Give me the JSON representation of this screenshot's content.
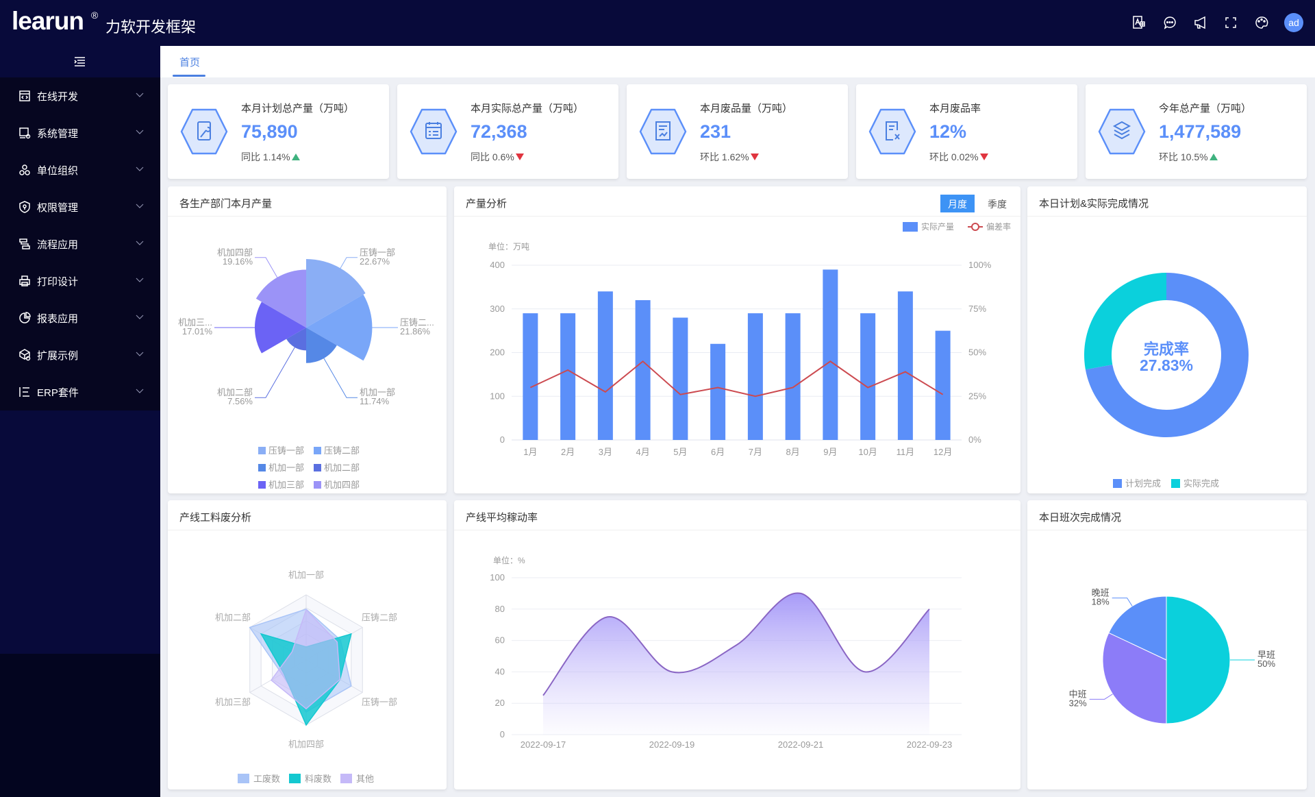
{
  "header": {
    "logo": "learun",
    "logo_mark": "®",
    "title": "力软开发框架",
    "avatar": "ad",
    "icons": [
      "translate-icon",
      "message-icon",
      "notice-icon",
      "fullscreen-icon",
      "theme-icon"
    ]
  },
  "sidebar": {
    "items": [
      {
        "label": "在线开发",
        "icon": "code-icon"
      },
      {
        "label": "系统管理",
        "icon": "monitor-gear-icon"
      },
      {
        "label": "单位组织",
        "icon": "org-icon"
      },
      {
        "label": "权限管理",
        "icon": "shield-icon"
      },
      {
        "label": "流程应用",
        "icon": "flow-icon"
      },
      {
        "label": "打印设计",
        "icon": "printer-icon"
      },
      {
        "label": "报表应用",
        "icon": "pie-icon"
      },
      {
        "label": "扩展示例",
        "icon": "cube-icon"
      },
      {
        "label": "ERP套件",
        "icon": "list-icon"
      }
    ]
  },
  "tabs": [
    {
      "label": "首页"
    }
  ],
  "stats": [
    {
      "title": "本月计划总产量（万吨）",
      "value": "75,890",
      "compare": "同比 1.14%",
      "trend": "up",
      "icon": "wrench-clipboard-icon"
    },
    {
      "title": "本月实际总产量（万吨）",
      "value": "72,368",
      "compare": "同比 0.6%",
      "trend": "down",
      "icon": "checklist-icon"
    },
    {
      "title": "本月废品量（万吨）",
      "value": "231",
      "compare": "环比 1.62%",
      "trend": "down",
      "icon": "document-chart-icon"
    },
    {
      "title": "本月废品率",
      "value": "12%",
      "compare": "环比 0.02%",
      "trend": "down",
      "icon": "document-x-icon"
    },
    {
      "title": "今年总产量（万吨）",
      "value": "1,477,589",
      "compare": "环比 10.5%",
      "trend": "up",
      "icon": "layers-icon"
    }
  ],
  "colors": {
    "up": "#3fb27f",
    "down": "#e0343f",
    "accent": "#5b8ff9"
  },
  "panels": {
    "rose": "各生产部门本月产量",
    "bar": "产量分析",
    "donut": "本日计划&实际完成情况",
    "radar": "产线工料废分析",
    "area": "产线平均稼动率",
    "pie": "本日班次完成情况"
  },
  "chart_data": [
    {
      "type": "pie",
      "variant": "rose",
      "title": "各生产部门本月产量",
      "categories": [
        "压铸一部",
        "压铸二部",
        "机加一部",
        "机加二部",
        "机加三部",
        "机加四部"
      ],
      "slice_labels": [
        "压铸一部",
        "压铸二...",
        "机加一部",
        "机加二部",
        "机加三...",
        "机加四部"
      ],
      "values": [
        22.67,
        21.86,
        11.74,
        7.56,
        17.01,
        19.16
      ],
      "value_labels": [
        "22.67%",
        "21.86%",
        "11.74%",
        "7.56%",
        "17.01%",
        "19.16%"
      ],
      "colors": [
        "#8aaef5",
        "#79a6f8",
        "#5588e6",
        "#5a6fe0",
        "#6b63f5",
        "#9b93f7"
      ],
      "legend": "bottom"
    },
    {
      "type": "bar",
      "title": "产量分析",
      "buttons": [
        "月度",
        "季度"
      ],
      "active_button": "月度",
      "categories": [
        "1月",
        "2月",
        "3月",
        "4月",
        "5月",
        "6月",
        "7月",
        "8月",
        "9月",
        "10月",
        "11月",
        "12月"
      ],
      "series": [
        {
          "name": "实际产量",
          "type": "bar",
          "axis": "left",
          "color": "#5b8ff9",
          "values": [
            290,
            290,
            340,
            320,
            280,
            220,
            290,
            290,
            390,
            290,
            340,
            250
          ]
        },
        {
          "name": "偏差率",
          "type": "line",
          "axis": "right",
          "color": "#cc4a50",
          "values": [
            30,
            40,
            27.5,
            45,
            26,
            30,
            25,
            30,
            45,
            30,
            39,
            26
          ]
        }
      ],
      "ylabel": "单位：万吨",
      "ylim": [
        0,
        400
      ],
      "yticks": [
        "0",
        "100",
        "200",
        "300",
        "400"
      ],
      "y2lim": [
        0,
        100
      ],
      "y2ticks": [
        "0%",
        "25%",
        "50%",
        "75%",
        "100%"
      ],
      "legend": "top-right",
      "grid": true
    },
    {
      "type": "pie",
      "variant": "donut",
      "title": "本日计划&实际完成情况",
      "categories": [
        "计划完成",
        "实际完成"
      ],
      "values": [
        72.17,
        27.83
      ],
      "colors": [
        "#5b8ff9",
        "#0bd0dc"
      ],
      "center_label": "完成率",
      "center_value": "27.83%",
      "legend": "bottom"
    },
    {
      "type": "radar",
      "title": "产线工料废分析",
      "indicators": [
        "机加一部",
        "压铸二部",
        "压铸一部",
        "机加四部",
        "机加三部",
        "机加二部"
      ],
      "max": 100,
      "series": [
        {
          "name": "工废数",
          "color": "#a9c4f7",
          "values": [
            78,
            61,
            80,
            80,
            43,
            100
          ]
        },
        {
          "name": "料废数",
          "color": "#14c8d0",
          "values": [
            20,
            80,
            60,
            100,
            40,
            80
          ]
        },
        {
          "name": "其他",
          "color": "#c5b9f8",
          "values": [
            77,
            55,
            60,
            75,
            62,
            25
          ]
        }
      ],
      "legend": "bottom"
    },
    {
      "type": "area",
      "title": "产线平均稼动率",
      "ylabel": "单位：%",
      "x": [
        "2022-09-17",
        "2022-09-18",
        "2022-09-19",
        "2022-09-20",
        "2022-09-21",
        "2022-09-22",
        "2022-09-23"
      ],
      "x_tick_labels": [
        "2022-09-17",
        "2022-09-19",
        "2022-09-21",
        "2022-09-23"
      ],
      "values": [
        25,
        75,
        40,
        57,
        90,
        40,
        80
      ],
      "ylim": [
        0,
        100
      ],
      "yticks": [
        "0",
        "20",
        "40",
        "60",
        "80",
        "100"
      ],
      "grid": true
    },
    {
      "type": "pie",
      "title": "本日班次完成情况",
      "categories": [
        "早班",
        "中班",
        "晚班"
      ],
      "values": [
        50,
        32,
        18
      ],
      "value_labels": [
        "50%",
        "32%",
        "18%"
      ],
      "colors": [
        "#0bd0dc",
        "#8c7cf8",
        "#5b8ff9"
      ]
    }
  ]
}
